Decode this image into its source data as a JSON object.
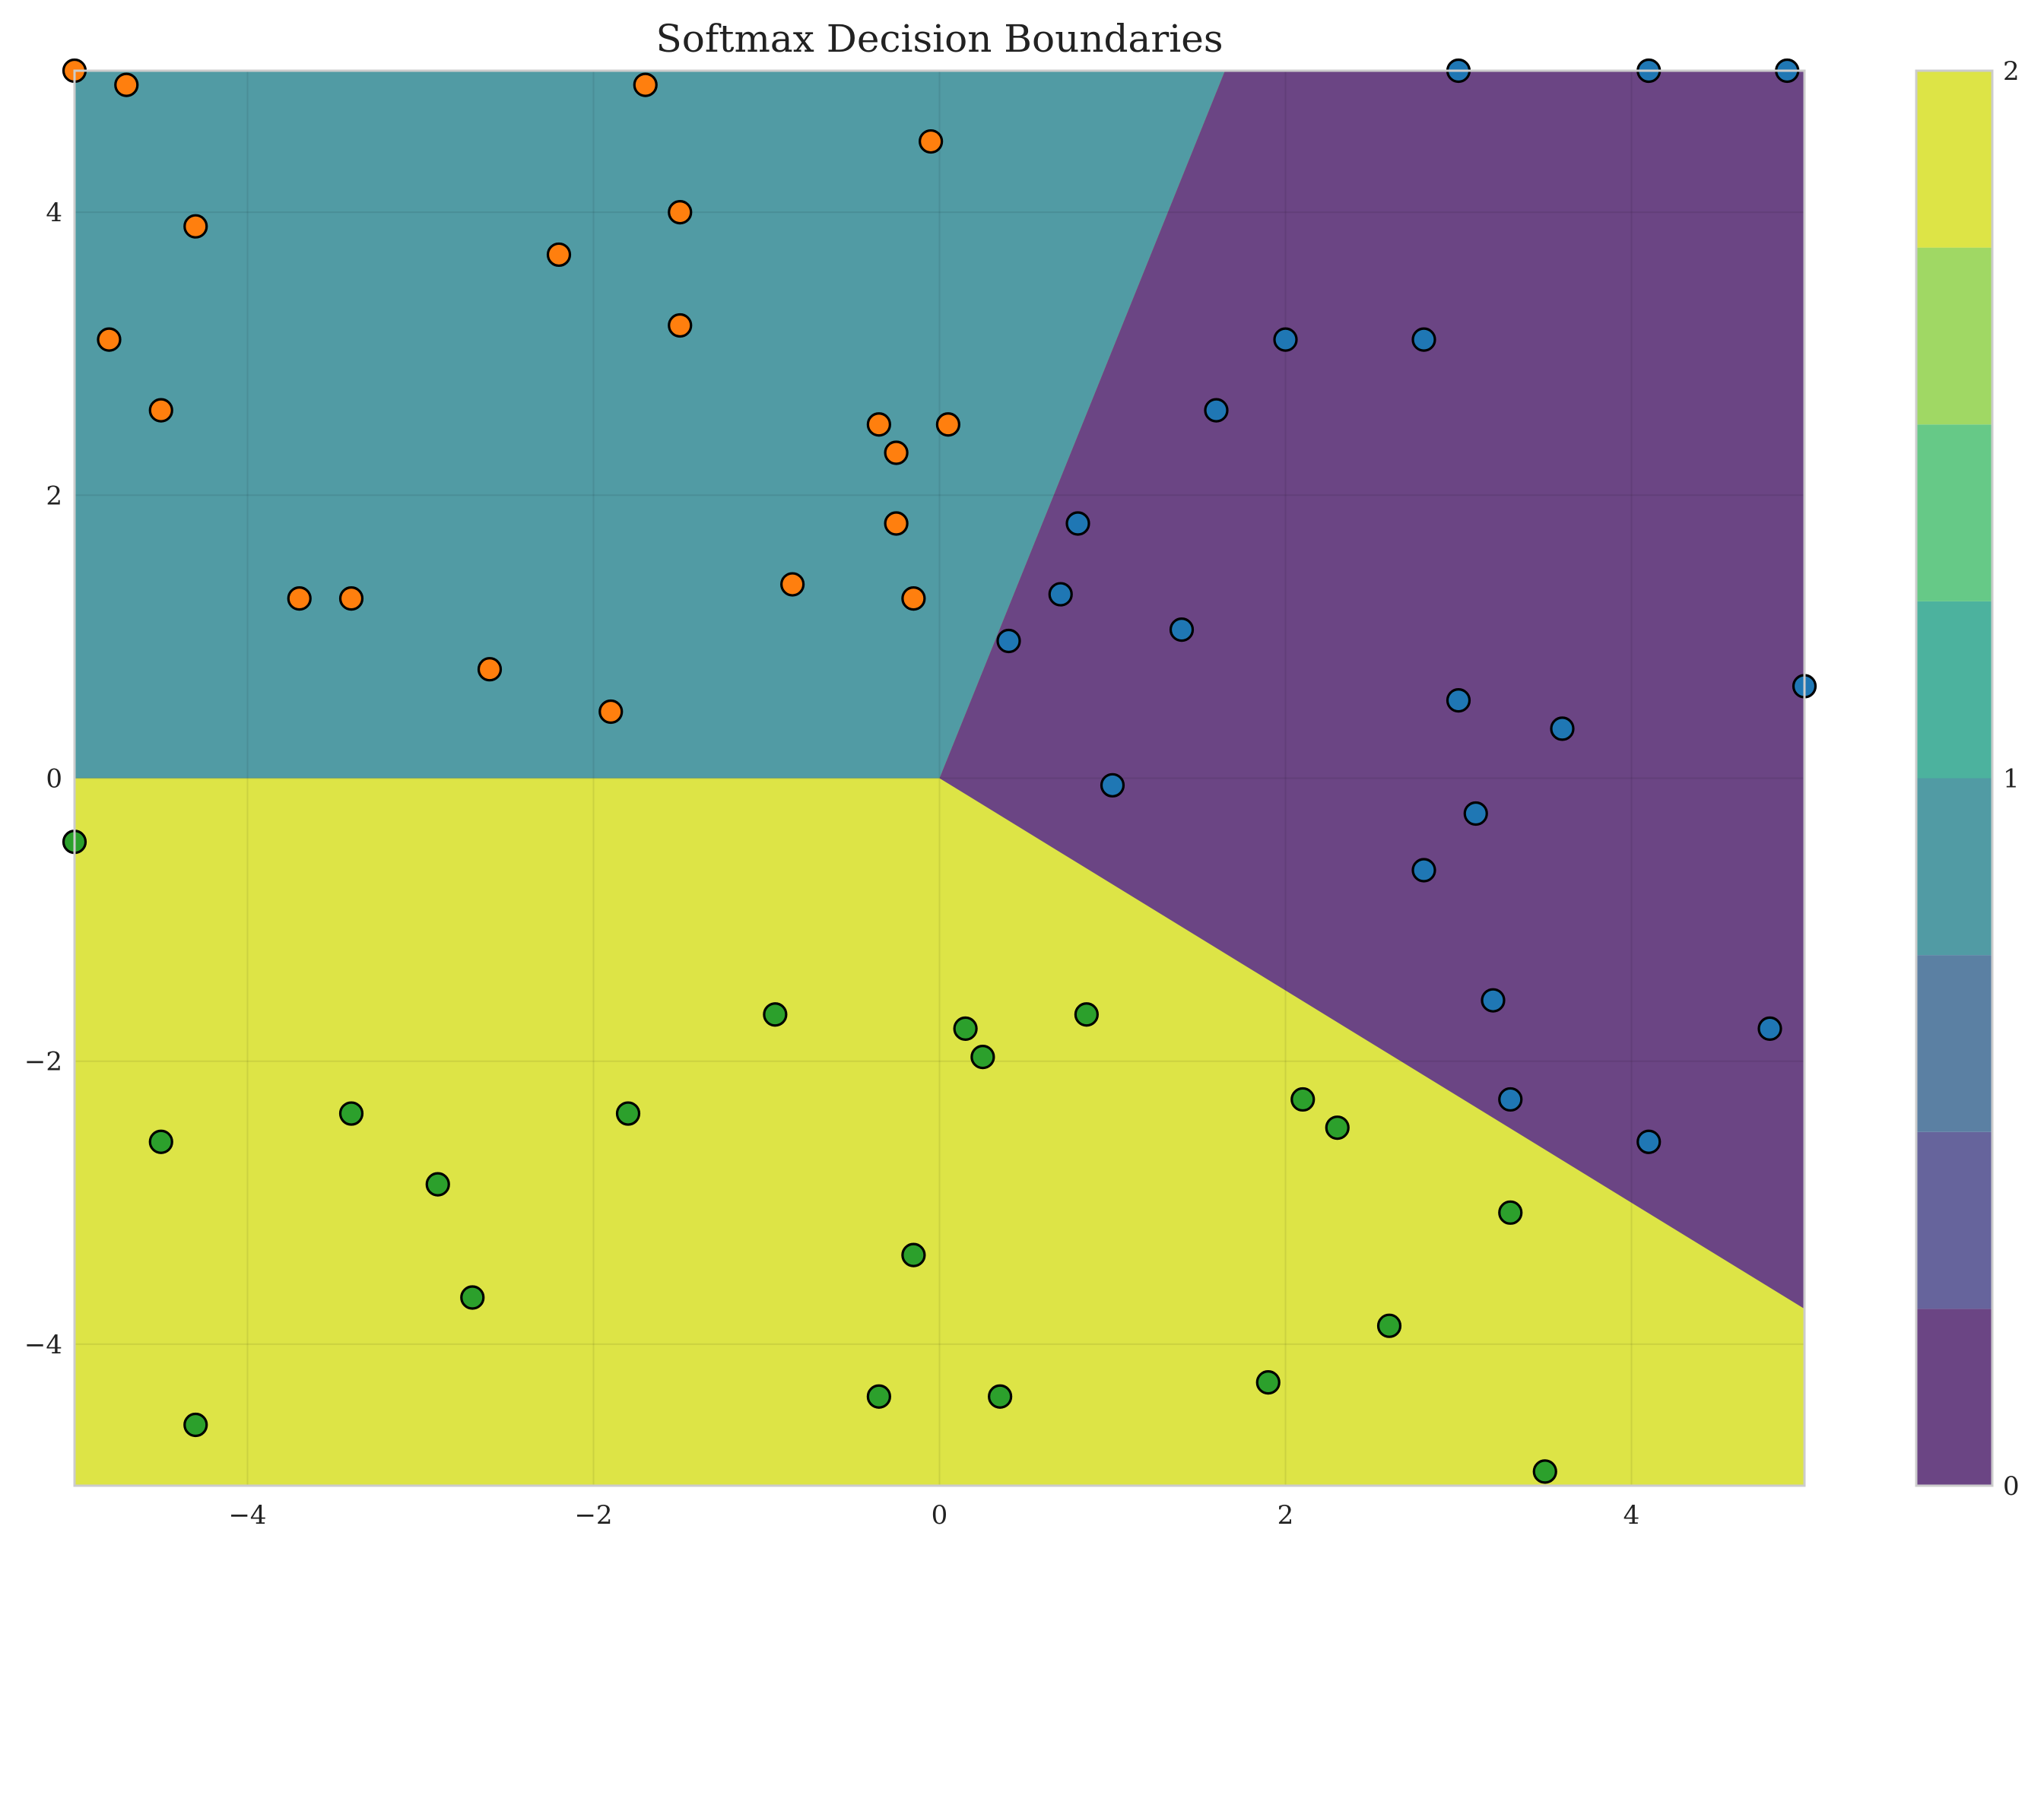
{
  "chart_data": {
    "type": "scatter",
    "title": "Softmax Decision Boundaries",
    "xlabel": "",
    "ylabel": "",
    "xlim": [
      -5,
      5
    ],
    "ylim": [
      -5,
      5
    ],
    "x_ticks": [
      -4,
      -2,
      0,
      2,
      4
    ],
    "x_tick_labels": [
      "−4",
      "−2",
      "0",
      "2",
      "4"
    ],
    "y_ticks": [
      -4,
      -2,
      0,
      2,
      4
    ],
    "y_tick_labels": [
      "−4",
      "−2",
      "0",
      "2",
      "4"
    ],
    "grid": true,
    "decision_regions": {
      "background": "filled contour of predicted class",
      "class_colors": [
        "#6b4584",
        "#519ba4",
        "#dde446"
      ],
      "boundary_points": {
        "origin": [
          0,
          0
        ],
        "class0_class1_top_x": 1.65,
        "class0_class2_right_y": -3.75
      }
    },
    "colorbar": {
      "ticks": [
        0,
        1,
        2
      ],
      "tick_labels": [
        "0",
        "1",
        "2"
      ],
      "levels": [
        {
          "from": 0.0,
          "to": 0.25,
          "color": "#6b4584"
        },
        {
          "from": 0.25,
          "to": 0.5,
          "color": "#66649c"
        },
        {
          "from": 0.5,
          "to": 0.75,
          "color": "#5b80a3"
        },
        {
          "from": 0.75,
          "to": 1.0,
          "color": "#519ba4"
        },
        {
          "from": 1.0,
          "to": 1.25,
          "color": "#4cb29e"
        },
        {
          "from": 1.25,
          "to": 1.5,
          "color": "#66c987"
        },
        {
          "from": 1.5,
          "to": 1.75,
          "color": "#a0d864"
        },
        {
          "from": 1.75,
          "to": 2.0,
          "color": "#dde446"
        }
      ]
    },
    "series": [
      {
        "color": "#1f77b4",
        "points": [
          [
            3.0,
            5.0
          ],
          [
            4.1,
            5.0
          ],
          [
            4.9,
            5.0
          ],
          [
            2.0,
            3.1
          ],
          [
            2.8,
            3.1
          ],
          [
            1.6,
            2.6
          ],
          [
            0.8,
            1.8
          ],
          [
            0.7,
            1.3
          ],
          [
            1.4,
            1.05
          ],
          [
            0.4,
            0.97
          ],
          [
            3.0,
            0.55
          ],
          [
            3.6,
            0.35
          ],
          [
            5.0,
            0.65
          ],
          [
            1.0,
            -0.05
          ],
          [
            3.1,
            -0.25
          ],
          [
            2.8,
            -0.65
          ],
          [
            3.2,
            -1.57
          ],
          [
            4.8,
            -1.77
          ],
          [
            3.3,
            -2.27
          ],
          [
            4.1,
            -2.57
          ]
        ]
      },
      {
        "color": "#ff7f0e",
        "points": [
          [
            -5.0,
            5.0
          ],
          [
            -4.7,
            4.9
          ],
          [
            -1.7,
            4.9
          ],
          [
            -0.05,
            4.5
          ],
          [
            -4.3,
            3.9
          ],
          [
            -1.5,
            4.0
          ],
          [
            -2.2,
            3.7
          ],
          [
            -4.8,
            3.1
          ],
          [
            -1.5,
            3.2
          ],
          [
            -4.5,
            2.6
          ],
          [
            -0.35,
            2.5
          ],
          [
            0.05,
            2.5
          ],
          [
            -0.25,
            2.3
          ],
          [
            -0.25,
            1.8
          ],
          [
            -3.7,
            1.27
          ],
          [
            -3.4,
            1.27
          ],
          [
            -0.85,
            1.37
          ],
          [
            -0.15,
            1.27
          ],
          [
            -2.6,
            0.77
          ],
          [
            -1.9,
            0.47
          ]
        ]
      },
      {
        "color": "#2ca02c",
        "points": [
          [
            -5.0,
            -0.45
          ],
          [
            -0.95,
            -1.67
          ],
          [
            0.15,
            -1.77
          ],
          [
            0.25,
            -1.97
          ],
          [
            0.85,
            -1.67
          ],
          [
            -4.5,
            -2.57
          ],
          [
            -3.4,
            -2.37
          ],
          [
            -1.8,
            -2.37
          ],
          [
            2.1,
            -2.27
          ],
          [
            2.3,
            -2.47
          ],
          [
            -2.9,
            -2.87
          ],
          [
            3.3,
            -3.07
          ],
          [
            -0.15,
            -3.37
          ],
          [
            -2.7,
            -3.67
          ],
          [
            2.6,
            -3.87
          ],
          [
            -4.3,
            -4.57
          ],
          [
            -0.35,
            -4.37
          ],
          [
            0.35,
            -4.37
          ],
          [
            1.9,
            -4.27
          ],
          [
            3.5,
            -4.9
          ]
        ]
      }
    ]
  }
}
